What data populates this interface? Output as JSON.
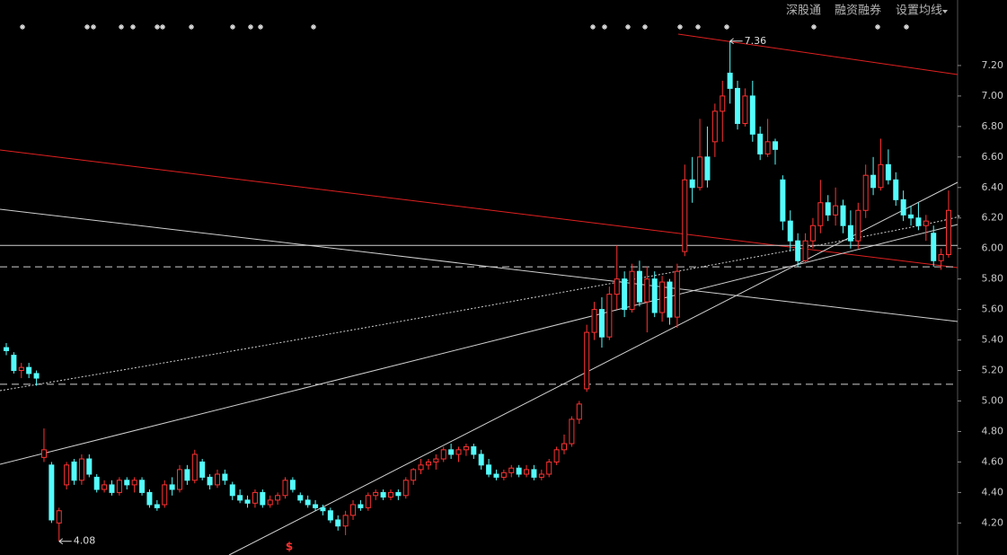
{
  "menu": [
    "深股通",
    "融资融券",
    "设置均线"
  ],
  "chart_data": {
    "type": "candlestick",
    "ylim": [
      3.99,
      7.5
    ],
    "yticks": [
      {
        "value": 4.2,
        "label": "4.20"
      },
      {
        "value": 4.4,
        "label": "4.40"
      },
      {
        "value": 4.6,
        "label": "4.60"
      },
      {
        "value": 4.8,
        "label": "4.80"
      },
      {
        "value": 5.0,
        "label": "5.00"
      },
      {
        "value": 5.2,
        "label": "5.20"
      },
      {
        "value": 5.4,
        "label": "5.40"
      },
      {
        "value": 5.6,
        "label": "5.60"
      },
      {
        "value": 5.8,
        "label": "5.80"
      },
      {
        "value": 6.0,
        "label": "6.00"
      },
      {
        "value": 6.2,
        "label": "6.20"
      },
      {
        "value": 6.4,
        "label": "6.40"
      },
      {
        "value": 6.6,
        "label": "6.60"
      },
      {
        "value": 6.8,
        "label": "6.80"
      },
      {
        "value": 7.0,
        "label": "7.00"
      },
      {
        "value": 7.2,
        "label": "7.20"
      }
    ],
    "up_color": "#ff3232",
    "down_color": "#54fcfc",
    "high_label": "7.36",
    "low_label": "4.08",
    "signal": "$",
    "levels": [
      {
        "value": 6.02,
        "style": "solid"
      },
      {
        "value": 5.88,
        "style": "dashed"
      },
      {
        "value": 5.11,
        "style": "dashed"
      }
    ],
    "candles": [
      [
        5.35,
        5.38,
        5.3,
        5.33
      ],
      [
        5.3,
        5.32,
        5.18,
        5.2
      ],
      [
        5.2,
        5.25,
        5.15,
        5.22
      ],
      [
        5.22,
        5.25,
        5.15,
        5.18
      ],
      [
        5.18,
        5.2,
        5.1,
        5.15
      ],
      [
        4.63,
        4.82,
        4.6,
        4.68
      ],
      [
        4.58,
        4.6,
        4.2,
        4.22
      ],
      [
        4.2,
        4.3,
        4.08,
        4.28
      ],
      [
        4.45,
        4.6,
        4.42,
        4.58
      ],
      [
        4.6,
        4.62,
        4.45,
        4.48
      ],
      [
        4.48,
        4.65,
        4.45,
        4.62
      ],
      [
        4.62,
        4.65,
        4.5,
        4.52
      ],
      [
        4.5,
        4.52,
        4.4,
        4.42
      ],
      [
        4.42,
        4.48,
        4.4,
        4.45
      ],
      [
        4.45,
        4.48,
        4.38,
        4.4
      ],
      [
        4.4,
        4.5,
        4.38,
        4.48
      ],
      [
        4.48,
        4.5,
        4.42,
        4.45
      ],
      [
        4.45,
        4.5,
        4.4,
        4.48
      ],
      [
        4.48,
        4.5,
        4.38,
        4.4
      ],
      [
        4.4,
        4.42,
        4.3,
        4.32
      ],
      [
        4.32,
        4.35,
        4.28,
        4.3
      ],
      [
        4.32,
        4.48,
        4.3,
        4.45
      ],
      [
        4.45,
        4.5,
        4.38,
        4.42
      ],
      [
        4.42,
        4.58,
        4.4,
        4.55
      ],
      [
        4.55,
        4.58,
        4.45,
        4.48
      ],
      [
        4.48,
        4.68,
        4.46,
        4.65
      ],
      [
        4.6,
        4.62,
        4.48,
        4.5
      ],
      [
        4.5,
        4.52,
        4.42,
        4.45
      ],
      [
        4.45,
        4.55,
        4.43,
        4.52
      ],
      [
        4.52,
        4.55,
        4.45,
        4.48
      ],
      [
        4.45,
        4.47,
        4.35,
        4.38
      ],
      [
        4.38,
        4.42,
        4.33,
        4.35
      ],
      [
        4.35,
        4.38,
        4.3,
        4.33
      ],
      [
        4.33,
        4.42,
        4.3,
        4.4
      ],
      [
        4.4,
        4.42,
        4.3,
        4.32
      ],
      [
        4.32,
        4.38,
        4.3,
        4.35
      ],
      [
        4.35,
        4.4,
        4.32,
        4.38
      ],
      [
        4.38,
        4.5,
        4.36,
        4.48
      ],
      [
        4.48,
        4.5,
        4.4,
        4.42
      ],
      [
        4.38,
        4.4,
        4.33,
        4.35
      ],
      [
        4.35,
        4.38,
        4.3,
        4.32
      ],
      [
        4.32,
        4.35,
        4.28,
        4.3
      ],
      [
        4.3,
        4.32,
        4.25,
        4.28
      ],
      [
        4.28,
        4.3,
        4.2,
        4.22
      ],
      [
        4.22,
        4.25,
        4.15,
        4.18
      ],
      [
        4.18,
        4.28,
        4.12,
        4.25
      ],
      [
        4.25,
        4.35,
        4.22,
        4.32
      ],
      [
        4.32,
        4.35,
        4.28,
        4.3
      ],
      [
        4.3,
        4.4,
        4.28,
        4.38
      ],
      [
        4.38,
        4.42,
        4.35,
        4.4
      ],
      [
        4.4,
        4.42,
        4.35,
        4.37
      ],
      [
        4.37,
        4.42,
        4.35,
        4.4
      ],
      [
        4.4,
        4.42,
        4.35,
        4.38
      ],
      [
        4.38,
        4.5,
        4.36,
        4.48
      ],
      [
        4.48,
        4.56,
        4.45,
        4.55
      ],
      [
        4.55,
        4.62,
        4.52,
        4.58
      ],
      [
        4.58,
        4.62,
        4.55,
        4.6
      ],
      [
        4.6,
        4.65,
        4.55,
        4.62
      ],
      [
        4.62,
        4.7,
        4.6,
        4.68
      ],
      [
        4.68,
        4.72,
        4.62,
        4.65
      ],
      [
        4.65,
        4.7,
        4.6,
        4.68
      ],
      [
        4.68,
        4.72,
        4.64,
        4.7
      ],
      [
        4.7,
        4.72,
        4.62,
        4.65
      ],
      [
        4.65,
        4.68,
        4.55,
        4.58
      ],
      [
        4.58,
        4.62,
        4.5,
        4.52
      ],
      [
        4.52,
        4.55,
        4.48,
        4.5
      ],
      [
        4.5,
        4.55,
        4.48,
        4.53
      ],
      [
        4.53,
        4.58,
        4.5,
        4.56
      ],
      [
        4.56,
        4.58,
        4.5,
        4.52
      ],
      [
        4.52,
        4.58,
        4.5,
        4.55
      ],
      [
        4.55,
        4.58,
        4.48,
        4.5
      ],
      [
        4.5,
        4.55,
        4.48,
        4.52
      ],
      [
        4.52,
        4.62,
        4.5,
        4.6
      ],
      [
        4.6,
        4.7,
        4.58,
        4.68
      ],
      [
        4.68,
        4.78,
        4.65,
        4.72
      ],
      [
        4.72,
        4.9,
        4.7,
        4.88
      ],
      [
        4.88,
        5.0,
        4.85,
        4.98
      ],
      [
        5.08,
        5.5,
        5.06,
        5.45
      ],
      [
        5.45,
        5.65,
        5.4,
        5.6
      ],
      [
        5.6,
        5.68,
        5.35,
        5.42
      ],
      [
        5.42,
        5.75,
        5.4,
        5.7
      ],
      [
        5.7,
        6.02,
        5.6,
        5.8
      ],
      [
        5.8,
        5.85,
        5.55,
        5.6
      ],
      [
        5.6,
        5.9,
        5.58,
        5.85
      ],
      [
        5.85,
        5.92,
        5.62,
        5.65
      ],
      [
        5.65,
        5.88,
        5.45,
        5.8
      ],
      [
        5.8,
        5.85,
        5.55,
        5.58
      ],
      [
        5.58,
        5.82,
        5.52,
        5.78
      ],
      [
        5.78,
        5.8,
        5.5,
        5.55
      ],
      [
        5.55,
        5.9,
        5.48,
        5.85
      ],
      [
        5.98,
        6.55,
        5.95,
        6.45
      ],
      [
        6.45,
        6.6,
        6.3,
        6.4
      ],
      [
        6.4,
        6.85,
        6.38,
        6.6
      ],
      [
        6.6,
        6.8,
        6.4,
        6.45
      ],
      [
        6.7,
        6.95,
        6.6,
        6.9
      ],
      [
        6.9,
        7.1,
        6.7,
        7.0
      ],
      [
        7.15,
        7.36,
        6.95,
        7.05
      ],
      [
        7.05,
        7.1,
        6.78,
        6.82
      ],
      [
        6.82,
        7.05,
        6.8,
        7.0
      ],
      [
        7.0,
        7.1,
        6.7,
        6.75
      ],
      [
        6.75,
        6.8,
        6.58,
        6.62
      ],
      [
        6.62,
        6.85,
        6.6,
        6.7
      ],
      [
        6.7,
        6.72,
        6.55,
        6.65
      ],
      [
        6.45,
        6.48,
        6.12,
        6.18
      ],
      [
        6.18,
        6.25,
        5.98,
        6.05
      ],
      [
        6.05,
        6.1,
        5.88,
        5.92
      ],
      [
        5.92,
        6.1,
        5.9,
        6.05
      ],
      [
        6.05,
        6.2,
        6.0,
        6.15
      ],
      [
        6.15,
        6.45,
        6.1,
        6.3
      ],
      [
        6.3,
        6.35,
        6.18,
        6.22
      ],
      [
        6.22,
        6.4,
        6.15,
        6.28
      ],
      [
        6.28,
        6.32,
        6.1,
        6.15
      ],
      [
        6.15,
        6.25,
        6.0,
        6.05
      ],
      [
        6.05,
        6.3,
        6.0,
        6.25
      ],
      [
        6.25,
        6.55,
        6.2,
        6.48
      ],
      [
        6.48,
        6.6,
        6.35,
        6.4
      ],
      [
        6.4,
        6.72,
        6.38,
        6.55
      ],
      [
        6.55,
        6.65,
        6.42,
        6.45
      ],
      [
        6.45,
        6.5,
        6.28,
        6.32
      ],
      [
        6.32,
        6.38,
        6.18,
        6.22
      ],
      [
        6.22,
        6.28,
        6.15,
        6.2
      ],
      [
        6.2,
        6.3,
        6.12,
        6.15
      ],
      [
        6.15,
        6.22,
        6.05,
        6.18
      ],
      [
        6.1,
        6.15,
        5.88,
        5.92
      ],
      [
        5.92,
        6.0,
        5.86,
        5.96
      ],
      [
        5.96,
        6.38,
        5.94,
        6.25
      ]
    ]
  }
}
